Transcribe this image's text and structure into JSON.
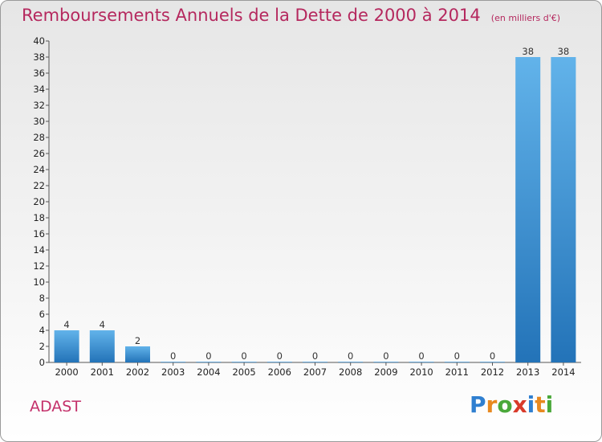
{
  "chart_data": {
    "type": "bar",
    "title": "Remboursements Annuels de la Dette de 2000 à 2014",
    "subtitle": "(en milliers d'€)",
    "categories": [
      "2000",
      "2001",
      "2002",
      "2003",
      "2004",
      "2005",
      "2006",
      "2007",
      "2008",
      "2009",
      "2010",
      "2011",
      "2012",
      "2013",
      "2014"
    ],
    "values": [
      4,
      4,
      2,
      0,
      0,
      0,
      0,
      0,
      0,
      0,
      0,
      0,
      0,
      38,
      38
    ],
    "data_labels": [
      "4",
      "4",
      "2",
      "0",
      "0",
      "0",
      "0",
      "0",
      "0",
      "0",
      "0",
      "0",
      "0",
      "38",
      "38"
    ],
    "ylim": [
      0,
      40
    ],
    "yticks": [
      0,
      2,
      4,
      6,
      8,
      10,
      12,
      14,
      16,
      18,
      20,
      22,
      24,
      26,
      28,
      30,
      32,
      34,
      36,
      38,
      40
    ],
    "xlabel": "",
    "ylabel": "",
    "grid": false,
    "bar_color": "#3a8fd4"
  },
  "footer": {
    "place": "ADAST",
    "logo": [
      "P",
      "r",
      "o",
      "x",
      "i",
      "t",
      "i"
    ],
    "logo_colors": [
      "#2f7fd0",
      "#e8891f",
      "#4aa83a",
      "#d93a2a",
      "#2f7fd0",
      "#e8891f",
      "#4aa83a"
    ]
  }
}
